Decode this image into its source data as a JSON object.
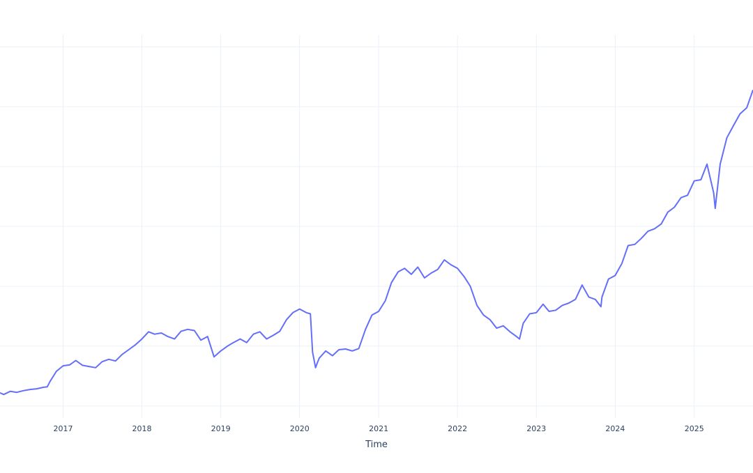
{
  "chart_data": {
    "type": "line",
    "title": "",
    "xlabel": "Time",
    "ylabel": "",
    "grid": true,
    "legend": "none",
    "x_tick_labels": [
      "2017",
      "2018",
      "2019",
      "2020",
      "2021",
      "2022",
      "2023",
      "2024",
      "2025"
    ],
    "xlim": [
      "2016-03-15",
      "2025-09-30"
    ],
    "ylim": [
      0.045,
      0.205
    ],
    "line_color": "#636efa",
    "series": [
      {
        "x": [
          "2016-03-15",
          "2016-04-01",
          "2016-05-01",
          "2016-06-01",
          "2016-07-01",
          "2016-08-01",
          "2016-09-01",
          "2016-10-01",
          "2016-10-20",
          "2016-11-01",
          "2016-12-01",
          "2017-01-01",
          "2017-02-01",
          "2017-03-01",
          "2017-04-01",
          "2017-05-01",
          "2017-06-01",
          "2017-07-01",
          "2017-08-01",
          "2017-09-01",
          "2017-10-01",
          "2017-11-01",
          "2017-12-01",
          "2018-01-01",
          "2018-02-01",
          "2018-03-01",
          "2018-04-01",
          "2018-05-01",
          "2018-06-01",
          "2018-07-01",
          "2018-08-01",
          "2018-09-01",
          "2018-10-01",
          "2018-11-01",
          "2018-12-01",
          "2019-01-01",
          "2019-02-01",
          "2019-03-01",
          "2019-04-01",
          "2019-05-01",
          "2019-06-01",
          "2019-07-01",
          "2019-08-01",
          "2019-09-01",
          "2019-10-01",
          "2019-11-01",
          "2019-12-01",
          "2020-01-01",
          "2020-02-01",
          "2020-02-20",
          "2020-03-01",
          "2020-03-15",
          "2020-03-23",
          "2020-04-01",
          "2020-05-01",
          "2020-06-01",
          "2020-07-01",
          "2020-08-01",
          "2020-09-01",
          "2020-10-01",
          "2020-11-01",
          "2020-12-01",
          "2021-01-01",
          "2021-02-01",
          "2021-03-01",
          "2021-04-01",
          "2021-05-01",
          "2021-06-01",
          "2021-07-01",
          "2021-08-01",
          "2021-09-01",
          "2021-10-01",
          "2021-11-01",
          "2021-12-01",
          "2022-01-01",
          "2022-02-01",
          "2022-03-01",
          "2022-04-01",
          "2022-05-01",
          "2022-06-01",
          "2022-07-01",
          "2022-08-01",
          "2022-09-01",
          "2022-10-01",
          "2022-10-15",
          "2022-11-01",
          "2022-12-01",
          "2023-01-01",
          "2023-02-01",
          "2023-03-01",
          "2023-04-01",
          "2023-05-01",
          "2023-06-01",
          "2023-07-01",
          "2023-08-01",
          "2023-09-01",
          "2023-10-01",
          "2023-10-27",
          "2023-11-01",
          "2023-12-01",
          "2024-01-01",
          "2024-02-01",
          "2024-03-01",
          "2024-04-01",
          "2024-05-01",
          "2024-06-01",
          "2024-07-01",
          "2024-08-01",
          "2024-09-01",
          "2024-10-01",
          "2024-11-01",
          "2024-12-01",
          "2025-01-01",
          "2025-02-01",
          "2025-03-01",
          "2025-04-01",
          "2025-04-08",
          "2025-05-01",
          "2025-06-01",
          "2025-07-01",
          "2025-08-01",
          "2025-09-01",
          "2025-09-30"
        ],
        "y": [
          0.0555,
          0.0548,
          0.0561,
          0.0557,
          0.0564,
          0.0569,
          0.0572,
          0.0578,
          0.058,
          0.0602,
          0.0645,
          0.0668,
          0.0672,
          0.069,
          0.067,
          0.0665,
          0.066,
          0.0685,
          0.0695,
          0.0688,
          0.0715,
          0.0735,
          0.0755,
          0.078,
          0.081,
          0.08,
          0.0805,
          0.079,
          0.078,
          0.0812,
          0.082,
          0.0815,
          0.0775,
          0.079,
          0.0705,
          0.073,
          0.075,
          0.0765,
          0.078,
          0.0765,
          0.08,
          0.081,
          0.078,
          0.0795,
          0.0812,
          0.086,
          0.089,
          0.0905,
          0.089,
          0.0885,
          0.0725,
          0.066,
          0.068,
          0.07,
          0.073,
          0.071,
          0.0735,
          0.0738,
          0.073,
          0.074,
          0.082,
          0.088,
          0.0895,
          0.094,
          0.1015,
          0.106,
          0.1075,
          0.105,
          0.108,
          0.1035,
          0.1055,
          0.107,
          0.111,
          0.109,
          0.1075,
          0.104,
          0.1,
          0.092,
          0.088,
          0.086,
          0.0825,
          0.0835,
          0.081,
          0.079,
          0.078,
          0.0845,
          0.0885,
          0.089,
          0.0925,
          0.0895,
          0.09,
          0.092,
          0.093,
          0.0945,
          0.1005,
          0.0955,
          0.0945,
          0.0915,
          0.0955,
          0.103,
          0.1045,
          0.1095,
          0.117,
          0.1175,
          0.12,
          0.123,
          0.124,
          0.126,
          0.131,
          0.133,
          0.137,
          0.138,
          0.144,
          0.1445,
          0.151,
          0.139,
          0.1325,
          0.151,
          0.162,
          0.167,
          0.172,
          0.1745,
          0.182
        ]
      }
    ]
  }
}
